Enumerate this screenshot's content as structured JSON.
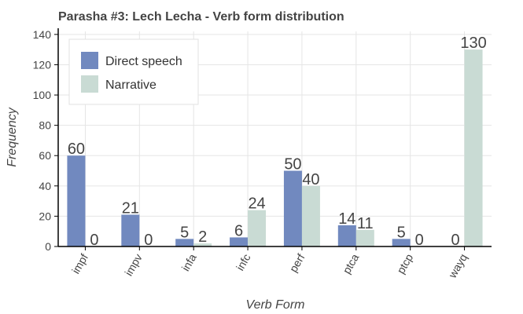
{
  "chart_data": {
    "type": "bar",
    "title": "Parasha #3: Lech Lecha - Verb form distribution",
    "xlabel": "Verb Form",
    "ylabel": "Frequency",
    "ylim": [
      0,
      142
    ],
    "yticks": [
      0,
      20,
      40,
      60,
      80,
      100,
      120,
      140
    ],
    "grid": true,
    "legend_position": "top-left",
    "categories": [
      "impf",
      "impv",
      "infa",
      "infc",
      "perf",
      "ptca",
      "ptcp",
      "wayq"
    ],
    "series": [
      {
        "name": "Direct speech",
        "color": "#7189bf",
        "values": [
          60,
          21,
          5,
          6,
          50,
          14,
          5,
          0
        ]
      },
      {
        "name": "Narrative",
        "color": "#c9dbd4",
        "values": [
          0,
          0,
          2,
          24,
          40,
          11,
          0,
          130
        ]
      }
    ]
  }
}
